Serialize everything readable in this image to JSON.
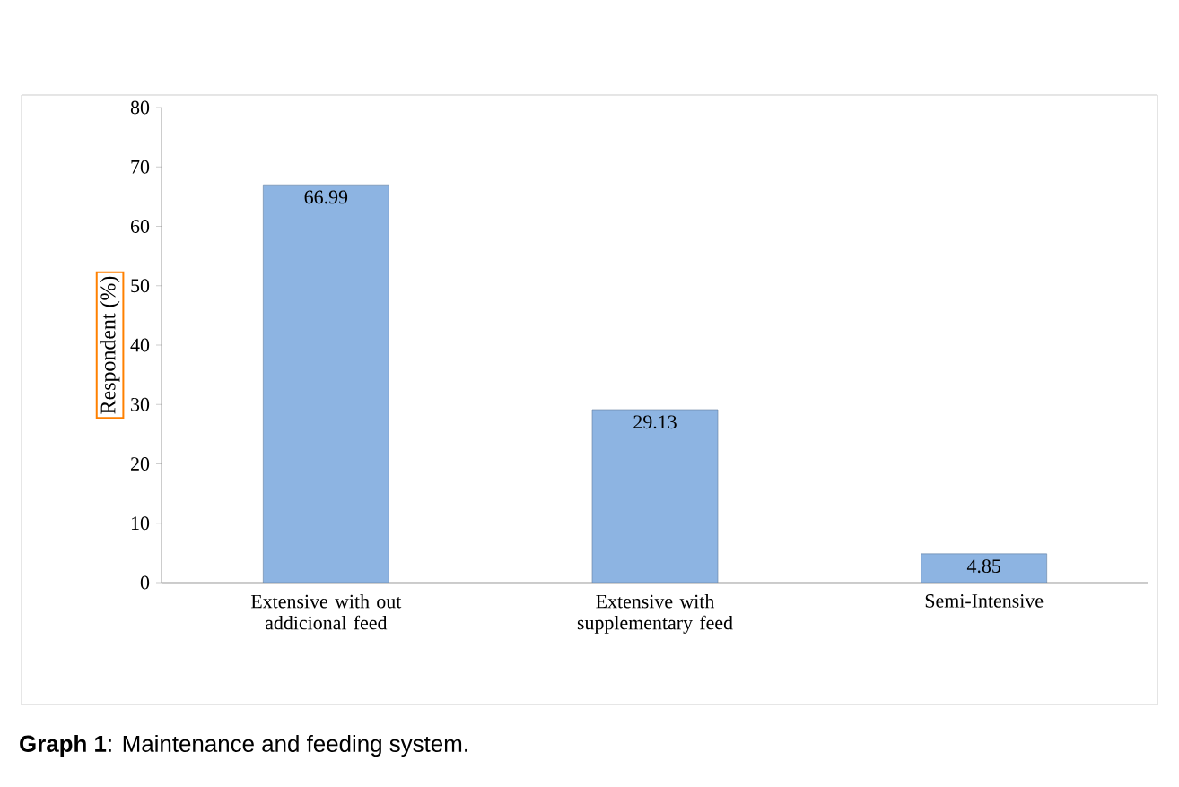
{
  "chart_data": {
    "type": "bar",
    "categories": [
      "Extensive with out addicional feed",
      "Extensive with supplementary feed",
      "Semi-Intensive"
    ],
    "values": [
      66.99,
      29.13,
      4.85
    ],
    "color": "#8db4e2",
    "ylabel": "Respondent (%)",
    "ylim": [
      0,
      80
    ],
    "yticks": [
      0,
      10,
      20,
      30,
      40,
      50,
      60,
      70,
      80
    ],
    "data_labels": true,
    "grid": false,
    "annotations": [
      "**Graph 1**: Maintenance and feeding system."
    ]
  }
}
